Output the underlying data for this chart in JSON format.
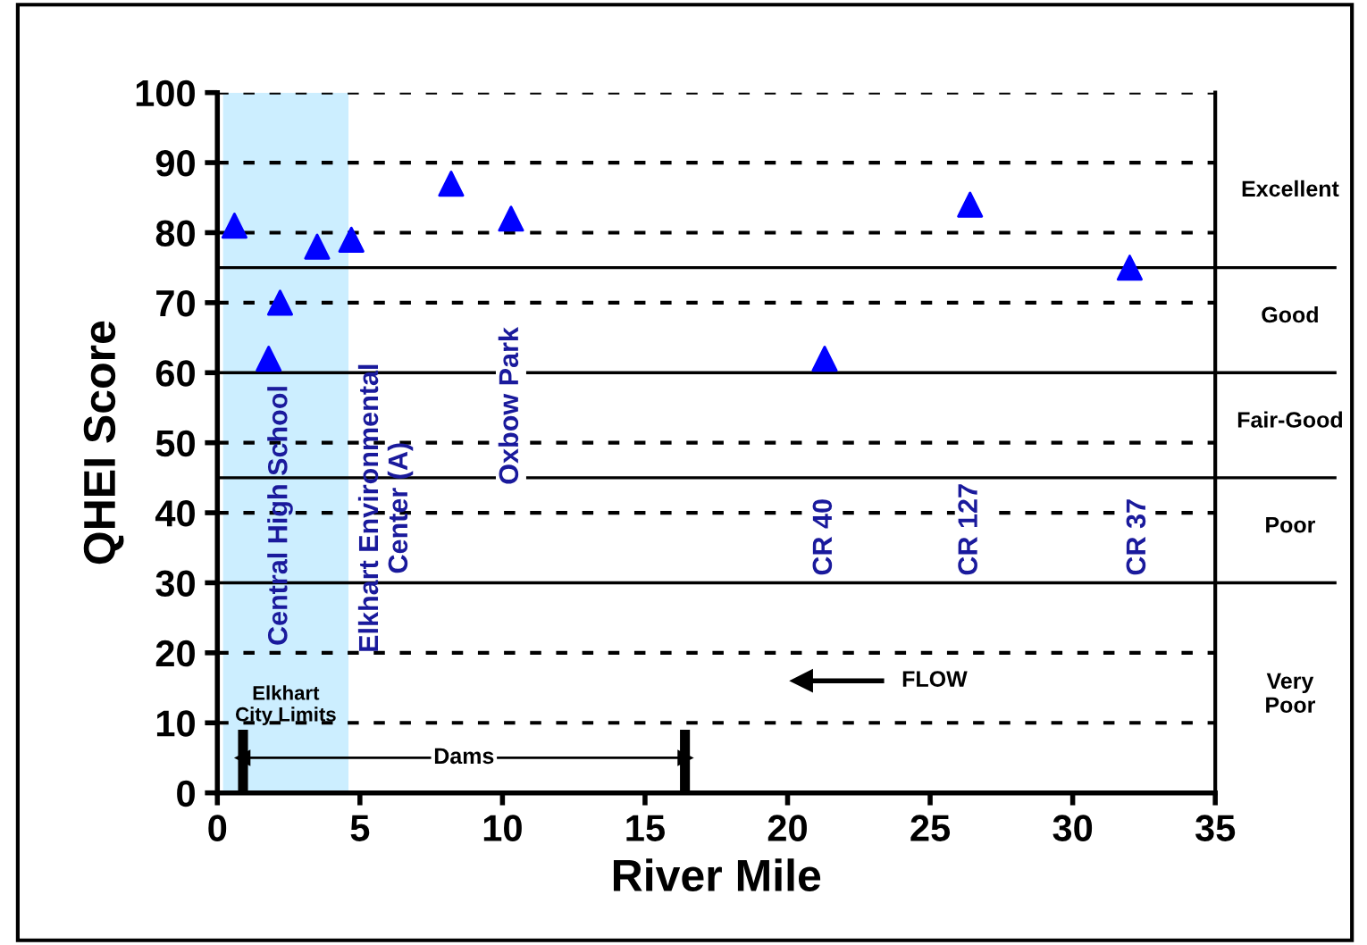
{
  "chart_data": {
    "type": "scatter",
    "xlabel": "River Mile",
    "ylabel": "QHEI Score",
    "x": [
      0.6,
      1.8,
      2.2,
      3.5,
      4.7,
      8.2,
      10.3,
      21.3,
      26.4,
      32.0
    ],
    "series": [
      {
        "color": "#0000ff",
        "values": [
          81,
          62,
          70,
          78,
          79,
          87,
          82,
          62,
          84,
          75
        ]
      },
      {
        "type": "line",
        "name": "Dams",
        "color": "#000000",
        "x": [
          0.9,
          16.4
        ],
        "values": [
          5,
          5
        ]
      },
      {
        "type": "line",
        "name": "FLOW",
        "color": "#000000",
        "x": [
          20.5,
          23.3
        ],
        "values": [
          16,
          16
        ]
      }
    ],
    "marker": "triangle",
    "xlim": [
      0,
      35
    ],
    "xticks": [
      0,
      5,
      10,
      15,
      20,
      25,
      30,
      35
    ],
    "ylim": [
      0,
      100
    ],
    "yticks": [
      0,
      10,
      20,
      30,
      40,
      50,
      60,
      70,
      80,
      90,
      100
    ],
    "grid": "y",
    "bands": [
      {
        "axis": "x",
        "from": 0.2,
        "to": 4.6,
        "label": "Elkhart\nCity Limits",
        "color": "#cceeff"
      }
    ],
    "ref_lines": [
      {
        "axis": "y",
        "value": 75,
        "color": "#000000"
      },
      {
        "axis": "y",
        "value": 60,
        "color": "#000000"
      },
      {
        "axis": "y",
        "value": 45,
        "color": "#000000"
      },
      {
        "axis": "y",
        "value": 30,
        "color": "#000000"
      },
      {
        "axis": "x",
        "value": 0.9,
        "color": "#000000"
      },
      {
        "axis": "x",
        "value": 16.4,
        "color": "#000000"
      }
    ],
    "annotations": [
      "Central High School",
      "Elkhart Environmental\nCenter (A)",
      "Oxbow Park",
      "CR 40",
      "CR 127",
      "CR 37",
      "Excellent",
      "Good",
      "Fair-Good",
      "Poor",
      "Very\nPoor"
    ]
  }
}
